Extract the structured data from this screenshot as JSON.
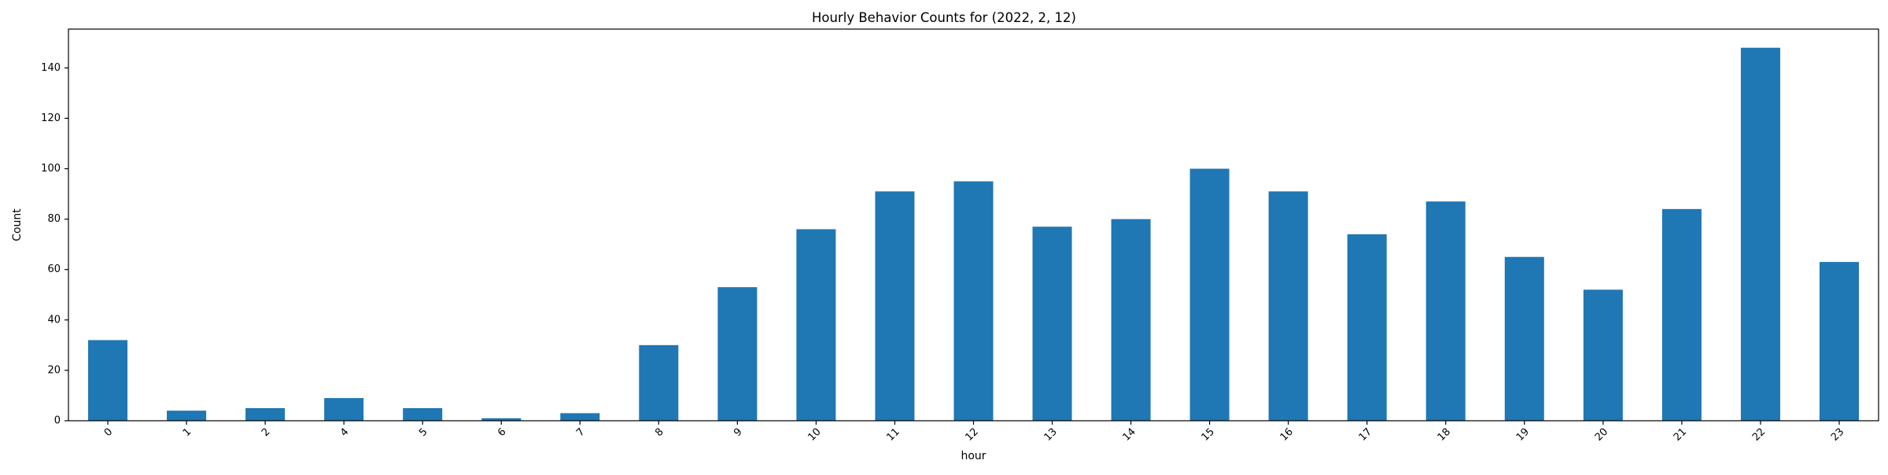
{
  "chart_data": {
    "type": "bar",
    "title": "Hourly Behavior Counts for (2022, 2, 12)",
    "xlabel": "hour",
    "ylabel": "Count",
    "categories": [
      "0",
      "1",
      "2",
      "4",
      "5",
      "6",
      "7",
      "8",
      "9",
      "10",
      "11",
      "12",
      "13",
      "14",
      "15",
      "16",
      "17",
      "18",
      "19",
      "20",
      "21",
      "22",
      "23"
    ],
    "values": [
      32,
      4,
      5,
      9,
      5,
      1,
      3,
      30,
      53,
      76,
      91,
      95,
      77,
      80,
      100,
      91,
      74,
      87,
      65,
      52,
      84,
      148,
      63
    ],
    "ylim": [
      0,
      155.4
    ],
    "yticks": [
      0,
      20,
      40,
      60,
      80,
      100,
      120,
      140
    ],
    "bar_color": "#1f77b4",
    "grid": false,
    "legend": "none",
    "xtick_rotation": -45
  }
}
